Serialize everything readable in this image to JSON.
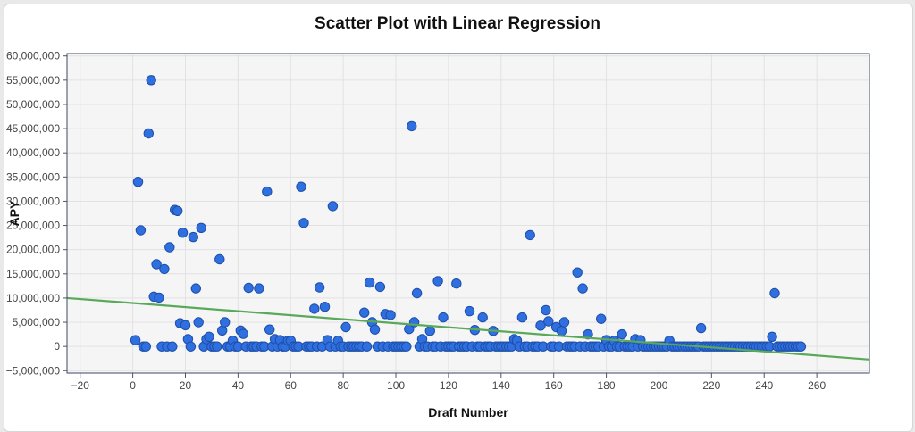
{
  "chart_data": {
    "type": "scatter",
    "title": "Scatter Plot with Linear Regression",
    "xlabel": "Draft Number",
    "ylabel": "APY",
    "xlim": [
      -25,
      280
    ],
    "ylim": [
      -5500000,
      60500000
    ],
    "x_ticks": [
      -20,
      0,
      20,
      40,
      60,
      80,
      100,
      120,
      140,
      160,
      180,
      200,
      220,
      240,
      260
    ],
    "x_tick_labels": [
      "−20",
      "0",
      "20",
      "40",
      "60",
      "80",
      "100",
      "120",
      "140",
      "160",
      "180",
      "200",
      "220",
      "240",
      "260"
    ],
    "y_ticks": [
      -5000000,
      0,
      5000000,
      10000000,
      15000000,
      20000000,
      25000000,
      30000000,
      35000000,
      40000000,
      45000000,
      50000000,
      55000000,
      60000000
    ],
    "y_tick_labels": [
      "−5,000,000",
      "0",
      "5,000,000",
      "10,000,000",
      "15,000,000",
      "20,000,000",
      "25,000,000",
      "30,000,000",
      "35,000,000",
      "40,000,000",
      "45,000,000",
      "50,000,000",
      "55,000,000",
      "60,000,000"
    ],
    "grid": true,
    "point_color": "#2f6fe0",
    "point_edge_color": "#1d4fa8",
    "line_color": "#5aa85a",
    "regression": {
      "x": [
        -25,
        280
      ],
      "y": [
        10000000,
        -2700000
      ]
    },
    "points": [
      [
        1,
        1300000
      ],
      [
        2,
        34000000
      ],
      [
        3,
        24000000
      ],
      [
        4,
        0
      ],
      [
        5,
        0
      ],
      [
        6,
        44000000
      ],
      [
        7,
        55000000
      ],
      [
        8,
        10300000
      ],
      [
        9,
        17000000
      ],
      [
        10,
        10100000
      ],
      [
        11,
        0
      ],
      [
        12,
        16000000
      ],
      [
        13,
        0
      ],
      [
        14,
        20500000
      ],
      [
        15,
        0
      ],
      [
        16,
        28200000
      ],
      [
        17,
        28000000
      ],
      [
        18,
        4800000
      ],
      [
        19,
        23500000
      ],
      [
        20,
        4400000
      ],
      [
        21,
        1500000
      ],
      [
        22,
        0
      ],
      [
        23,
        22600000
      ],
      [
        24,
        12000000
      ],
      [
        25,
        5000000
      ],
      [
        26,
        24500000
      ],
      [
        27,
        0
      ],
      [
        28,
        1500000
      ],
      [
        29,
        2000000
      ],
      [
        30,
        0
      ],
      [
        31,
        0
      ],
      [
        32,
        0
      ],
      [
        33,
        18000000
      ],
      [
        34,
        3300000
      ],
      [
        35,
        5000000
      ],
      [
        36,
        0
      ],
      [
        37,
        0
      ],
      [
        38,
        1200000
      ],
      [
        39,
        0
      ],
      [
        40,
        0
      ],
      [
        41,
        3300000
      ],
      [
        42,
        2600000
      ],
      [
        43,
        0
      ],
      [
        44,
        12100000
      ],
      [
        45,
        0
      ],
      [
        46,
        0
      ],
      [
        47,
        0
      ],
      [
        48,
        12000000
      ],
      [
        49,
        0
      ],
      [
        50,
        0
      ],
      [
        51,
        32000000
      ],
      [
        52,
        3500000
      ],
      [
        53,
        0
      ],
      [
        54,
        1500000
      ],
      [
        55,
        0
      ],
      [
        56,
        1300000
      ],
      [
        57,
        0
      ],
      [
        58,
        0
      ],
      [
        59,
        1200000
      ],
      [
        60,
        1200000
      ],
      [
        61,
        0
      ],
      [
        62,
        0
      ],
      [
        63,
        0
      ],
      [
        64,
        33000000
      ],
      [
        65,
        25500000
      ],
      [
        66,
        0
      ],
      [
        67,
        0
      ],
      [
        68,
        0
      ],
      [
        69,
        7800000
      ],
      [
        70,
        0
      ],
      [
        71,
        12200000
      ],
      [
        72,
        0
      ],
      [
        73,
        8200000
      ],
      [
        74,
        1300000
      ],
      [
        75,
        0
      ],
      [
        76,
        29000000
      ],
      [
        77,
        0
      ],
      [
        78,
        1200000
      ],
      [
        79,
        0
      ],
      [
        80,
        0
      ],
      [
        81,
        4000000
      ],
      [
        82,
        0
      ],
      [
        83,
        0
      ],
      [
        84,
        0
      ],
      [
        85,
        0
      ],
      [
        86,
        0
      ],
      [
        87,
        0
      ],
      [
        88,
        7000000
      ],
      [
        89,
        0
      ],
      [
        90,
        13200000
      ],
      [
        91,
        5000000
      ],
      [
        92,
        3500000
      ],
      [
        93,
        0
      ],
      [
        94,
        12300000
      ],
      [
        95,
        0
      ],
      [
        96,
        6700000
      ],
      [
        97,
        0
      ],
      [
        98,
        6500000
      ],
      [
        99,
        0
      ],
      [
        100,
        0
      ],
      [
        101,
        0
      ],
      [
        102,
        0
      ],
      [
        103,
        0
      ],
      [
        104,
        0
      ],
      [
        105,
        3600000
      ],
      [
        106,
        45500000
      ],
      [
        107,
        5000000
      ],
      [
        108,
        11000000
      ],
      [
        109,
        0
      ],
      [
        110,
        1500000
      ],
      [
        111,
        0
      ],
      [
        112,
        0
      ],
      [
        113,
        3200000
      ],
      [
        114,
        0
      ],
      [
        115,
        0
      ],
      [
        116,
        13500000
      ],
      [
        117,
        0
      ],
      [
        118,
        6000000
      ],
      [
        119,
        0
      ],
      [
        120,
        0
      ],
      [
        121,
        0
      ],
      [
        122,
        0
      ],
      [
        123,
        13000000
      ],
      [
        124,
        0
      ],
      [
        125,
        0
      ],
      [
        126,
        0
      ],
      [
        127,
        0
      ],
      [
        128,
        7300000
      ],
      [
        129,
        0
      ],
      [
        130,
        3400000
      ],
      [
        131,
        0
      ],
      [
        132,
        0
      ],
      [
        133,
        6000000
      ],
      [
        134,
        0
      ],
      [
        135,
        0
      ],
      [
        136,
        0
      ],
      [
        137,
        3200000
      ],
      [
        138,
        0
      ],
      [
        139,
        0
      ],
      [
        140,
        0
      ],
      [
        141,
        0
      ],
      [
        142,
        0
      ],
      [
        143,
        0
      ],
      [
        144,
        0
      ],
      [
        145,
        1500000
      ],
      [
        146,
        1200000
      ],
      [
        147,
        0
      ],
      [
        148,
        6000000
      ],
      [
        149,
        0
      ],
      [
        150,
        0
      ],
      [
        151,
        23000000
      ],
      [
        152,
        0
      ],
      [
        153,
        0
      ],
      [
        154,
        0
      ],
      [
        155,
        4300000
      ],
      [
        156,
        0
      ],
      [
        157,
        7500000
      ],
      [
        158,
        5200000
      ],
      [
        159,
        0
      ],
      [
        160,
        0
      ],
      [
        161,
        4000000
      ],
      [
        162,
        0
      ],
      [
        163,
        3200000
      ],
      [
        164,
        5000000
      ],
      [
        165,
        0
      ],
      [
        166,
        0
      ],
      [
        167,
        0
      ],
      [
        168,
        0
      ],
      [
        169,
        15300000
      ],
      [
        170,
        0
      ],
      [
        171,
        12000000
      ],
      [
        172,
        0
      ],
      [
        173,
        2500000
      ],
      [
        174,
        0
      ],
      [
        175,
        0
      ],
      [
        176,
        0
      ],
      [
        177,
        0
      ],
      [
        178,
        5700000
      ],
      [
        179,
        0
      ],
      [
        180,
        1300000
      ],
      [
        181,
        0
      ],
      [
        182,
        0
      ],
      [
        183,
        1200000
      ],
      [
        184,
        0
      ],
      [
        185,
        0
      ],
      [
        186,
        2500000
      ],
      [
        187,
        0
      ],
      [
        188,
        0
      ],
      [
        189,
        0
      ],
      [
        190,
        0
      ],
      [
        191,
        1500000
      ],
      [
        192,
        0
      ],
      [
        193,
        1300000
      ],
      [
        194,
        0
      ],
      [
        195,
        0
      ],
      [
        196,
        0
      ],
      [
        197,
        0
      ],
      [
        198,
        0
      ],
      [
        199,
        0
      ],
      [
        200,
        0
      ],
      [
        201,
        0
      ],
      [
        202,
        0
      ],
      [
        203,
        0
      ],
      [
        204,
        1200000
      ],
      [
        205,
        0
      ],
      [
        206,
        0
      ],
      [
        207,
        0
      ],
      [
        208,
        0
      ],
      [
        209,
        0
      ],
      [
        210,
        0
      ],
      [
        211,
        0
      ],
      [
        212,
        0
      ],
      [
        213,
        0
      ],
      [
        214,
        0
      ],
      [
        215,
        0
      ],
      [
        216,
        3800000
      ],
      [
        217,
        0
      ],
      [
        218,
        0
      ],
      [
        219,
        0
      ],
      [
        220,
        0
      ],
      [
        221,
        0
      ],
      [
        222,
        0
      ],
      [
        223,
        0
      ],
      [
        224,
        0
      ],
      [
        225,
        0
      ],
      [
        226,
        0
      ],
      [
        227,
        0
      ],
      [
        228,
        0
      ],
      [
        229,
        0
      ],
      [
        230,
        0
      ],
      [
        231,
        0
      ],
      [
        232,
        0
      ],
      [
        233,
        0
      ],
      [
        234,
        0
      ],
      [
        235,
        0
      ],
      [
        236,
        0
      ],
      [
        237,
        0
      ],
      [
        238,
        0
      ],
      [
        239,
        0
      ],
      [
        240,
        0
      ],
      [
        241,
        0
      ],
      [
        242,
        0
      ],
      [
        243,
        2000000
      ],
      [
        244,
        11000000
      ],
      [
        245,
        0
      ],
      [
        246,
        0
      ],
      [
        247,
        0
      ],
      [
        248,
        0
      ],
      [
        249,
        0
      ],
      [
        250,
        0
      ],
      [
        251,
        0
      ],
      [
        252,
        0
      ],
      [
        253,
        0
      ],
      [
        254,
        0
      ]
    ]
  }
}
